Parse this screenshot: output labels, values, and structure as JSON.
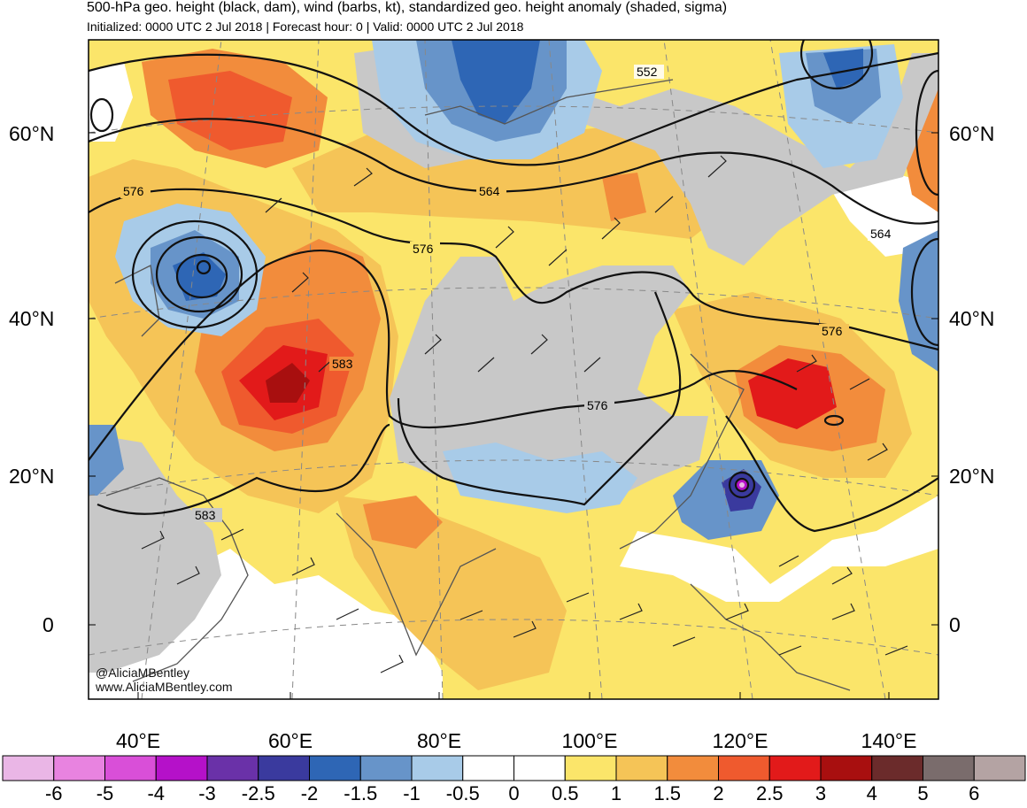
{
  "header": {
    "title": "500-hPa geo. height (black, dam), wind (barbs, kt), standardized geo. height anomaly (shaded, sigma)",
    "subtitle": "Initialized: 0000 UTC 2 Jul 2018 | Forecast hour: 0 | Valid: 0000 UTC 2 Jul 2018"
  },
  "map": {
    "lat_labels_left": [
      "60°N",
      "40°N",
      "20°N",
      "0"
    ],
    "lat_labels_right": [
      "60°N",
      "40°N",
      "20°N",
      "0"
    ],
    "lon_labels": [
      "40°E",
      "60°E",
      "80°E",
      "100°E",
      "120°E",
      "140°E"
    ],
    "contour_labels": [
      "552",
      "564",
      "576",
      "576",
      "583",
      "576",
      "576",
      "564",
      "583"
    ],
    "credit": [
      "@AliciaMBentley",
      "www.AliciaMBentley.com"
    ]
  },
  "colorbar": {
    "ticks": [
      "-6",
      "-5",
      "-4",
      "-3",
      "-2.5",
      "-2",
      "-1.5",
      "-1",
      "-0.5",
      "0",
      "0.5",
      "1",
      "1.5",
      "2",
      "2.5",
      "3",
      "4",
      "5",
      "6"
    ],
    "colors": [
      "#eab6e6",
      "#e883e0",
      "#d94fd8",
      "#b511c9",
      "#6a31a8",
      "#3a3a9e",
      "#2e66b5",
      "#6794c9",
      "#a8cbe8",
      "#ffffff",
      "#ffffff",
      "#fbe56a",
      "#f5c457",
      "#f28c3c",
      "#ef5a2e",
      "#e21a1a",
      "#a80f0f",
      "#6b2b2b",
      "#7a6c6c",
      "#b4a3a3"
    ]
  }
}
